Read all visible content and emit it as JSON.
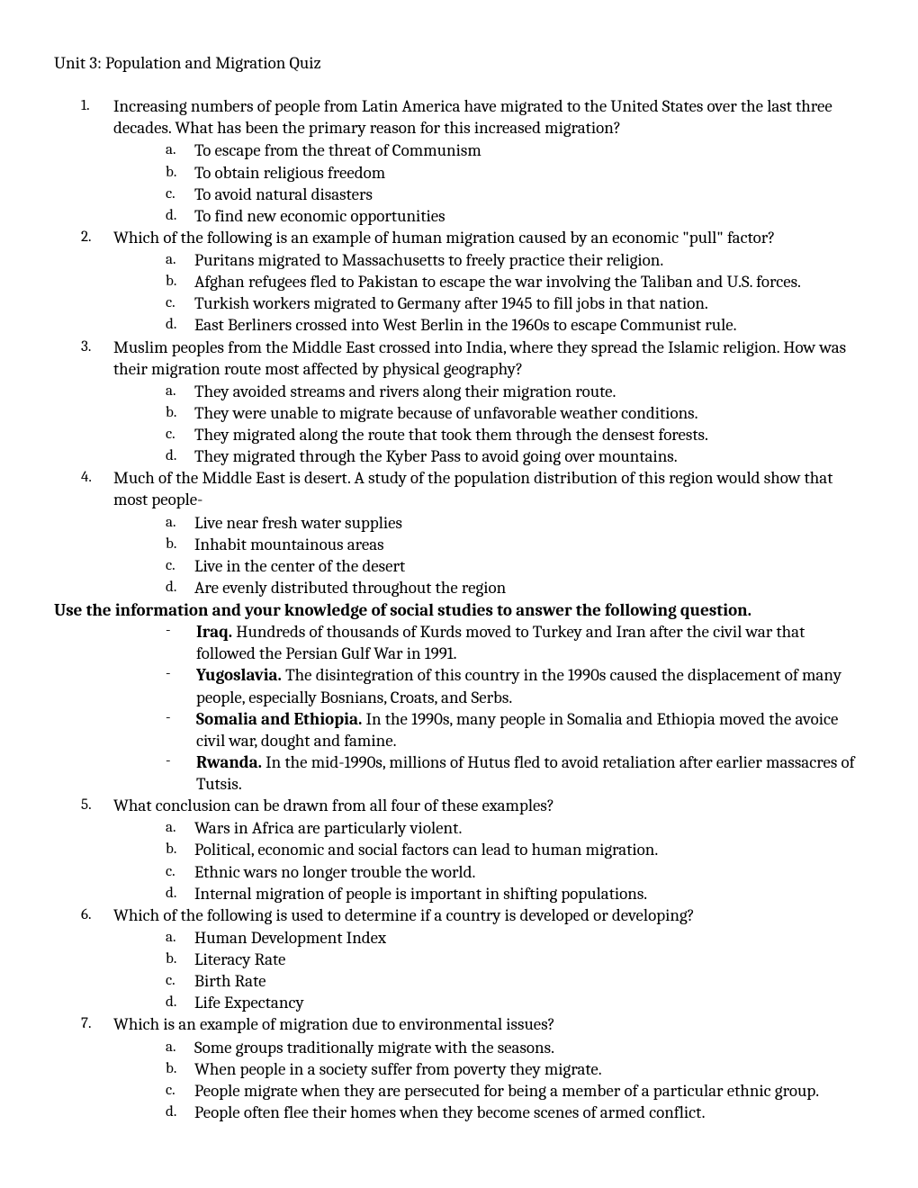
{
  "title": "Unit 3: Population and Migration Quiz",
  "questions": [
    {
      "num": "1.",
      "text": "Increasing numbers of people from Latin America have migrated to the United States over the last three decades. What has been the primary reason for this increased migration?",
      "options": [
        {
          "letter": "a.",
          "text": "To escape from the threat of Communism"
        },
        {
          "letter": "b.",
          "text": "To obtain religious freedom"
        },
        {
          "letter": "c.",
          "text": "To avoid natural disasters"
        },
        {
          "letter": "d.",
          "text": "To find new economic opportunities"
        }
      ]
    },
    {
      "num": "2.",
      "text": "Which of the following is an example of human migration caused by an economic \"pull\" factor?",
      "options": [
        {
          "letter": "a.",
          "text": "Puritans migrated to Massachusetts to freely practice their religion."
        },
        {
          "letter": "b.",
          "text": "Afghan refugees fled to Pakistan to escape the war involving the Taliban and U.S. forces."
        },
        {
          "letter": "c.",
          "text": "Turkish workers migrated to Germany after 1945 to fill jobs in that nation."
        },
        {
          "letter": "d.",
          "text": "East Berliners crossed into West Berlin in the 1960s to escape Communist rule."
        }
      ]
    },
    {
      "num": "3.",
      "text": "Muslim peoples from the Middle East crossed into India, where they spread the Islamic religion. How was their migration route most affected by physical geography?",
      "options": [
        {
          "letter": "a.",
          "text": "They avoided streams and rivers along their migration route."
        },
        {
          "letter": "b.",
          "text": "They were unable to migrate because of unfavorable weather conditions."
        },
        {
          "letter": "c.",
          "text": "They migrated along the route that took them through the densest forests."
        },
        {
          "letter": "d.",
          "text": "They migrated through the Kyber Pass to avoid going over mountains."
        }
      ]
    },
    {
      "num": "4.",
      "text": "Much of the Middle East is desert. A study of the population distribution of this region would show that most people-",
      "options": [
        {
          "letter": "a.",
          "text": "Live near fresh water supplies"
        },
        {
          "letter": "b.",
          "text": "Inhabit mountainous areas"
        },
        {
          "letter": "c.",
          "text": "Live in the center of the desert"
        },
        {
          "letter": "d.",
          "text": "Are evenly distributed throughout the region"
        }
      ]
    }
  ],
  "instruction": "Use the information and your knowledge of social studies to answer the following question.",
  "bullets": [
    {
      "label": "Iraq.",
      "text": " Hundreds of thousands of Kurds moved to Turkey and Iran after the civil war that followed the Persian Gulf War in 1991."
    },
    {
      "label": "Yugoslavia.",
      "text": " The disintegration of this country in the 1990s caused the displacement of many people, especially Bosnians, Croats, and Serbs."
    },
    {
      "label": "Somalia and Ethiopia.",
      "text": " In the 1990s, many people in Somalia and Ethiopia moved the avoice civil war, dought and famine."
    },
    {
      "label": "Rwanda.",
      "text": " In the mid-1990s, millions of Hutus fled to avoid retaliation after earlier massacres of Tutsis."
    }
  ],
  "questions2": [
    {
      "num": "5.",
      "text": "What conclusion can be drawn from all four of these examples?",
      "options": [
        {
          "letter": "a.",
          "text": "Wars in Africa are particularly violent."
        },
        {
          "letter": "b.",
          "text": "Political, economic and social factors can lead to human migration."
        },
        {
          "letter": "c.",
          "text": "Ethnic wars no longer trouble the world."
        },
        {
          "letter": "d.",
          "text": "Internal migration of people is important in shifting populations."
        }
      ]
    },
    {
      "num": "6.",
      "text": "Which of the following is used to determine if a country is developed or developing?",
      "options": [
        {
          "letter": "a.",
          "text": "Human Development Index"
        },
        {
          "letter": "b.",
          "text": "Literacy Rate"
        },
        {
          "letter": "c.",
          "text": "Birth Rate"
        },
        {
          "letter": "d.",
          "text": "Life Expectancy"
        }
      ]
    },
    {
      "num": "7.",
      "text": "Which is an example of migration due to environmental issues?",
      "options": [
        {
          "letter": "a.",
          "text": "Some groups traditionally migrate with the seasons."
        },
        {
          "letter": "b.",
          "text": "When people in a society suffer from poverty they migrate."
        },
        {
          "letter": "c.",
          "text": "People migrate when they are persecuted for being a member of a particular ethnic group."
        },
        {
          "letter": "d.",
          "text": "People often flee their homes when they become scenes of armed conflict."
        }
      ]
    }
  ]
}
